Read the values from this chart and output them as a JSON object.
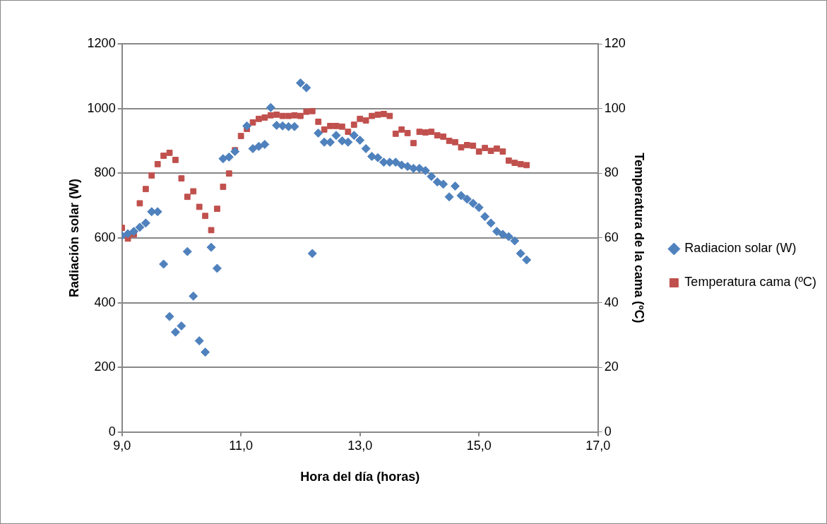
{
  "chart_data": {
    "type": "scatter",
    "xlabel": "Hora del día (horas)",
    "ylabel": "Radiación solar (W)",
    "y2label": "Temperatura de la cama (ºC)",
    "x": [
      9.0,
      9.1,
      9.2,
      9.3,
      9.4,
      9.5,
      9.6,
      9.7,
      9.8,
      9.9,
      10.0,
      10.1,
      10.2,
      10.3,
      10.4,
      10.5,
      10.6,
      10.7,
      10.8,
      10.9,
      11.0,
      11.1,
      11.2,
      11.3,
      11.4,
      11.5,
      11.6,
      11.7,
      11.8,
      11.9,
      12.0,
      12.1,
      12.2,
      12.3,
      12.4,
      12.5,
      12.6,
      12.7,
      12.8,
      12.9,
      13.0,
      13.1,
      13.2,
      13.3,
      13.4,
      13.5,
      13.6,
      13.7,
      13.8,
      13.9,
      14.0,
      14.1,
      14.2,
      14.3,
      14.4,
      14.5,
      14.6,
      14.7,
      14.8,
      14.9,
      15.0,
      15.1,
      15.2,
      15.3,
      15.4,
      15.5,
      15.6,
      15.7,
      15.8
    ],
    "series": [
      {
        "name": "Radiacion solar (W)",
        "color": "#4f81bd",
        "marker": "diamond",
        "values": [
          607,
          613,
          620,
          633,
          646,
          681,
          681,
          519,
          357,
          309,
          328,
          558,
          420,
          282,
          247,
          571,
          506,
          845,
          850,
          867,
          null,
          946,
          876,
          883,
          889,
          1003,
          948,
          946,
          944,
          944,
          1079,
          1064,
          552,
          924,
          896,
          896,
          917,
          900,
          896,
          917,
          902,
          876,
          852,
          848,
          834,
          834,
          834,
          825,
          821,
          815,
          815,
          808,
          790,
          773,
          766,
          727,
          760,
          731,
          720,
          707,
          694,
          666,
          646,
          620,
          611,
          604,
          591,
          552,
          532
        ]
      },
      {
        "name": "Temperatura cama (ºC)",
        "color": "#c0504d",
        "marker": "square",
        "axis": "y2",
        "values": [
          63.1,
          59.8,
          61.1,
          70.7,
          75.1,
          79.3,
          82.8,
          85.4,
          86.3,
          84.1,
          78.4,
          72.7,
          74.4,
          69.6,
          66.8,
          62.4,
          69.0,
          75.8,
          79.9,
          87.1,
          91.5,
          93.7,
          95.7,
          96.8,
          97.2,
          97.9,
          98.1,
          97.7,
          97.7,
          97.9,
          97.7,
          99.0,
          99.2,
          95.9,
          93.5,
          94.6,
          94.6,
          94.4,
          92.8,
          95.0,
          96.8,
          96.3,
          97.7,
          98.1,
          98.3,
          97.7,
          92.2,
          93.5,
          92.4,
          89.3,
          92.8,
          92.6,
          92.8,
          91.7,
          91.3,
          90.0,
          89.6,
          88.0,
          88.7,
          88.5,
          86.7,
          87.8,
          86.9,
          87.6,
          86.7,
          83.9,
          83.2,
          82.8,
          82.5
        ]
      }
    ],
    "xlim": [
      9,
      17
    ],
    "xticks": [
      {
        "value": 9,
        "label": "9,0"
      },
      {
        "value": 11,
        "label": "11,0"
      },
      {
        "value": 13,
        "label": "13,0"
      },
      {
        "value": 15,
        "label": "15,0"
      },
      {
        "value": 17,
        "label": "17,0"
      }
    ],
    "ylim": [
      0,
      1200
    ],
    "yticks": [
      0,
      200,
      400,
      600,
      800,
      1000,
      1200
    ],
    "y2lim": [
      0,
      120
    ],
    "y2ticks": [
      0,
      20,
      40,
      60,
      80,
      100,
      120
    ],
    "grid": "y",
    "legend": "right"
  }
}
